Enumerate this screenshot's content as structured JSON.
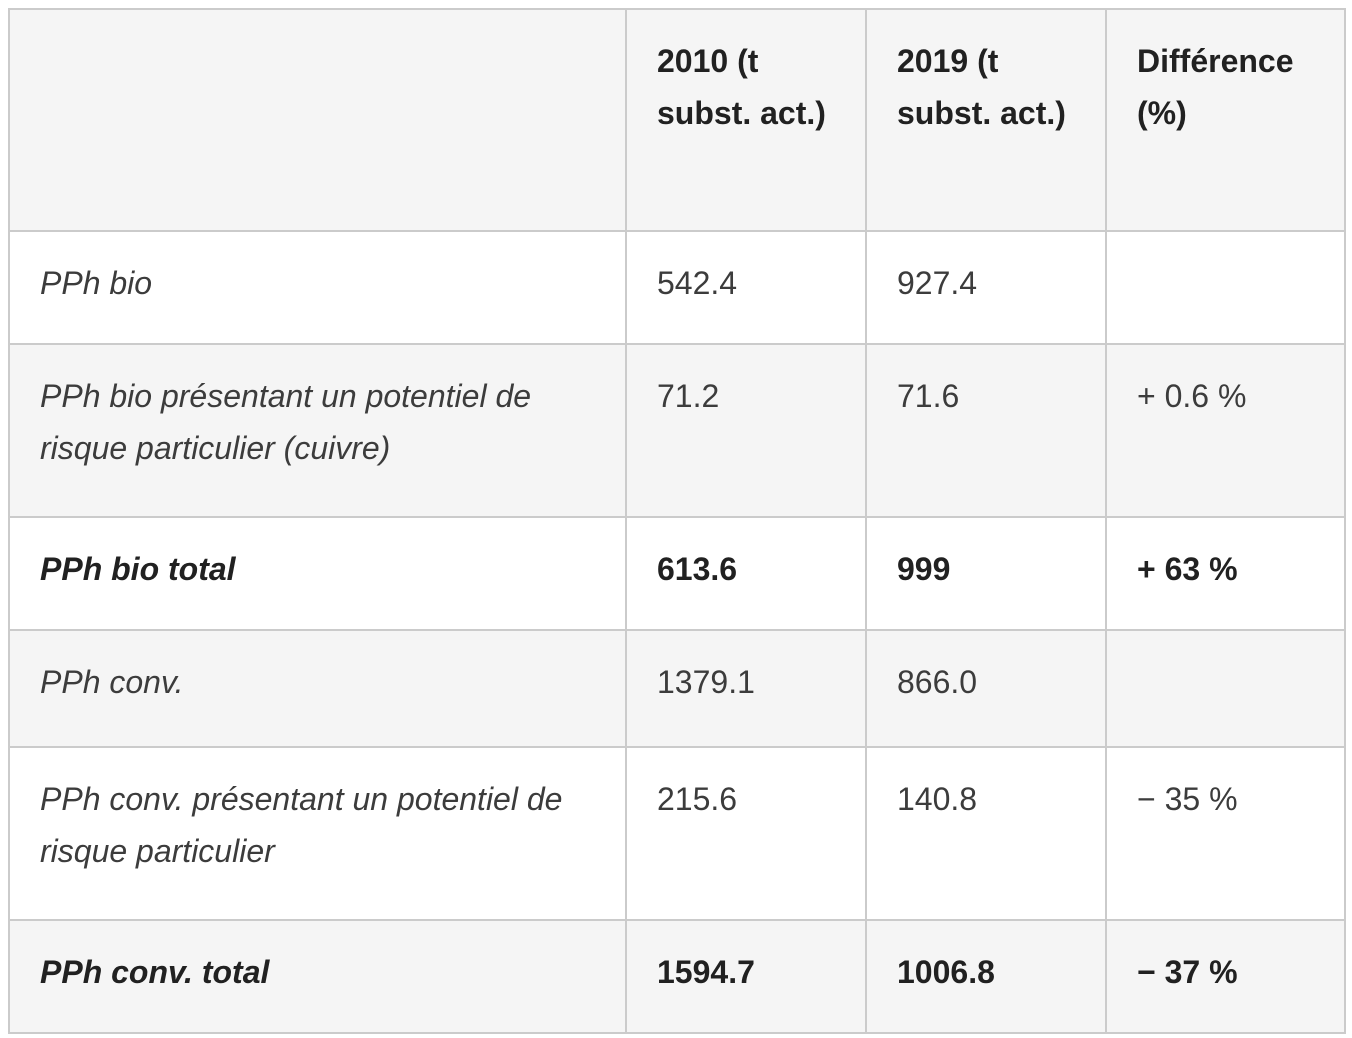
{
  "colors": {
    "row_bg": "#ffffff",
    "row_alt_bg": "#f5f5f5",
    "grid_border": "#cbcbcb",
    "text": "#3c3c3c",
    "text_strong": "#212121"
  },
  "table": {
    "columns": {
      "label": "",
      "y2010": "2010 (t subst. act.)",
      "y2019": "2019 (t subst. act.)",
      "diff": "Différence (%)"
    },
    "rows": [
      {
        "label": "PPh bio",
        "y2010": "542.4",
        "y2019": "927.4",
        "diff": "",
        "total": false
      },
      {
        "label": "PPh bio présentant un potentiel de risque particulier (cuivre)",
        "y2010": "71.2",
        "y2019": "71.6",
        "diff": "+ 0.6 %",
        "total": false
      },
      {
        "label": "PPh bio total",
        "y2010": "613.6",
        "y2019": "999",
        "diff": "+ 63 %",
        "total": true
      },
      {
        "label": "PPh conv.",
        "y2010": "1379.1",
        "y2019": "866.0",
        "diff": "",
        "total": false
      },
      {
        "label": "PPh conv. présentant un potentiel de risque particulier",
        "y2010": "215.6",
        "y2019": "140.8",
        "diff": "− 35 %",
        "total": false
      },
      {
        "label": "PPh conv. total",
        "y2010": "1594.7",
        "y2019": "1006.8",
        "diff": "− 37 %",
        "total": true
      }
    ]
  },
  "chart_data": {
    "type": "table",
    "title": "",
    "columns": [
      "",
      "2010 (t subst. act.)",
      "2019 (t subst. act.)",
      "Différence (%)"
    ],
    "rows": [
      [
        "PPh bio",
        542.4,
        927.4,
        ""
      ],
      [
        "PPh bio présentant un potentiel de risque particulier (cuivre)",
        71.2,
        71.6,
        "+ 0.6 %"
      ],
      [
        "PPh bio total",
        613.6,
        999,
        "+ 63 %"
      ],
      [
        "PPh conv.",
        1379.1,
        866.0,
        ""
      ],
      [
        "PPh conv. présentant un potentiel de risque particulier",
        215.6,
        140.8,
        "− 35 %"
      ],
      [
        "PPh conv. total",
        1594.7,
        1006.8,
        "− 37 %"
      ]
    ],
    "layout": {
      "bold_rows": [
        "PPh bio total",
        "PPh conv. total"
      ],
      "alternating_row_shading": true,
      "grid": true
    }
  }
}
